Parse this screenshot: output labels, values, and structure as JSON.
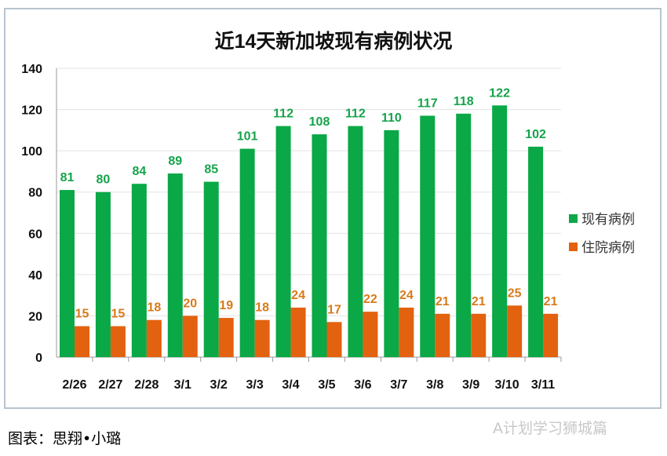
{
  "chart_data": {
    "type": "bar",
    "title": "近14天新加坡现有病例状况",
    "categories": [
      "2/26",
      "2/27",
      "2/28",
      "3/1",
      "3/2",
      "3/3",
      "3/4",
      "3/5",
      "3/6",
      "3/7",
      "3/8",
      "3/9",
      "3/10",
      "3/11"
    ],
    "series": [
      {
        "name": "现有病例",
        "color": "#0aa846",
        "label_color": "#16a34a",
        "values": [
          81,
          80,
          84,
          89,
          85,
          101,
          112,
          108,
          112,
          110,
          117,
          118,
          122,
          102
        ]
      },
      {
        "name": "住院病例",
        "color": "#e2620f",
        "label_color": "#d97a1a",
        "values": [
          15,
          15,
          18,
          20,
          19,
          18,
          24,
          17,
          22,
          24,
          21,
          21,
          25,
          21
        ]
      }
    ],
    "ylim": [
      0,
      140
    ],
    "yticks": [
      0,
      20,
      40,
      60,
      80,
      100,
      120,
      140
    ],
    "grid": true,
    "legend": "right"
  },
  "caption": "图表：思翔•小璐",
  "watermark": "A计划学习狮城篇"
}
